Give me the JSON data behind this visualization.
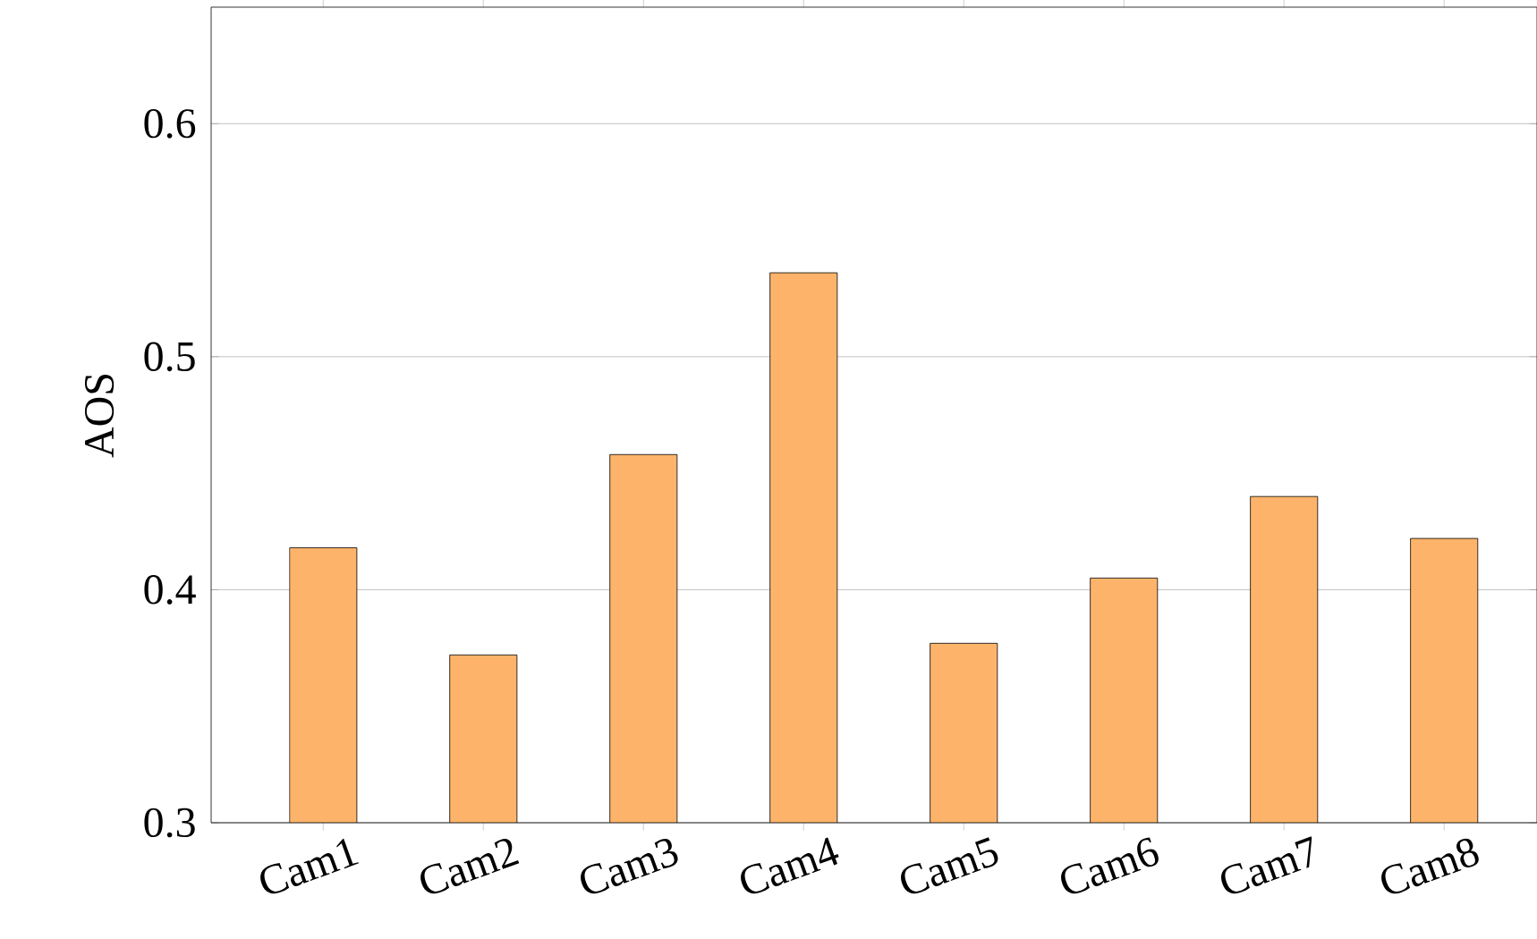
{
  "chart_data": {
    "type": "bar",
    "ylabel": "AOS",
    "categories": [
      "Cam1",
      "Cam2",
      "Cam3",
      "Cam4",
      "Cam5",
      "Cam6",
      "Cam7",
      "Cam8"
    ],
    "values": [
      0.418,
      0.372,
      0.458,
      0.536,
      0.377,
      0.405,
      0.44,
      0.422
    ],
    "color": "#fdb46a",
    "ylim": [
      0.3,
      0.65
    ],
    "yticks": [
      0.3,
      0.4,
      0.5,
      0.6
    ],
    "grid": "y"
  }
}
